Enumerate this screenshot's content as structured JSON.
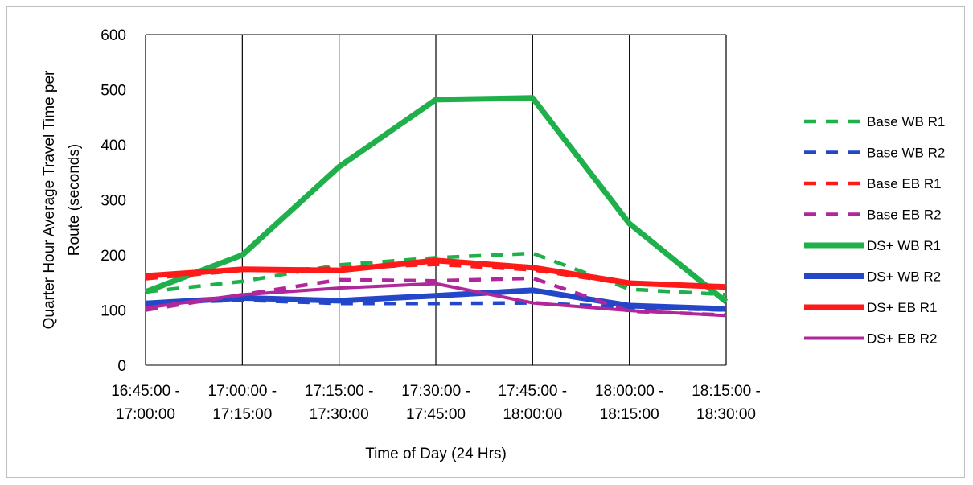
{
  "chart_data": {
    "type": "line",
    "title": "",
    "xlabel": "Time of Day (24 Hrs)",
    "ylabel": "Quarter Hour Average Travel Time per Route (seconds)",
    "ylim": [
      0,
      600
    ],
    "yticks": [
      0,
      100,
      200,
      300,
      400,
      500,
      600
    ],
    "grid": "vertical",
    "legend_position": "right",
    "categories": [
      [
        "16:45:00 -",
        "17:00:00"
      ],
      [
        "17:00:00 -",
        "17:15:00"
      ],
      [
        "17:15:00 -",
        "17:30:00"
      ],
      [
        "17:30:00 -",
        "17:45:00"
      ],
      [
        "17:45:00 -",
        "18:00:00"
      ],
      [
        "18:00:00 -",
        "18:15:00"
      ],
      [
        "18:15:00 -",
        "18:30:00"
      ]
    ],
    "series": [
      {
        "name": "Base WB R1",
        "color": "#1fb04b",
        "style": "dashed",
        "values": [
          133,
          152,
          182,
          195,
          203,
          138,
          128
        ]
      },
      {
        "name": "Base WB R2",
        "color": "#2446c8",
        "style": "dashed",
        "values": [
          112,
          118,
          112,
          112,
          113,
          105,
          100
        ]
      },
      {
        "name": "Base EB R1",
        "color": "#ff1a1a",
        "style": "dashed",
        "values": [
          157,
          172,
          176,
          183,
          173,
          147,
          141
        ]
      },
      {
        "name": "Base EB R2",
        "color": "#b0279b",
        "style": "dashed",
        "values": [
          100,
          128,
          155,
          153,
          158,
          98,
          91
        ]
      },
      {
        "name": "DS+ WB R1",
        "color": "#1fb04b",
        "style": "solid-thick",
        "values": [
          133,
          200,
          360,
          482,
          485,
          257,
          115
        ]
      },
      {
        "name": "DS+ WB R2",
        "color": "#2446c8",
        "style": "solid-thick",
        "values": [
          112,
          122,
          117,
          126,
          136,
          108,
          102
        ]
      },
      {
        "name": "DS+ EB R1",
        "color": "#ff1a1a",
        "style": "solid-thick",
        "values": [
          162,
          174,
          172,
          190,
          177,
          149,
          142
        ]
      },
      {
        "name": "DS+ EB R2",
        "color": "#b0279b",
        "style": "solid-thin",
        "values": [
          104,
          128,
          140,
          148,
          113,
          99,
          90
        ]
      }
    ]
  }
}
